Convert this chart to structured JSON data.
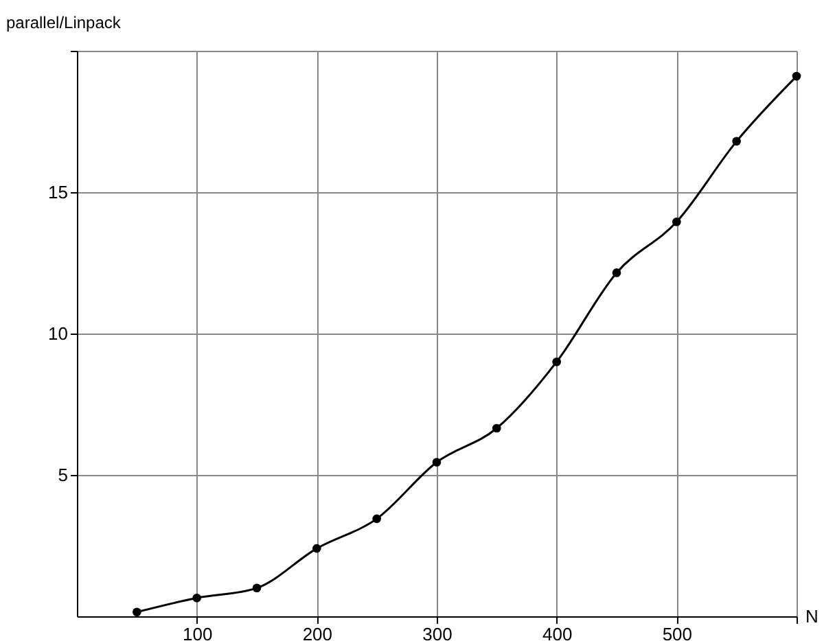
{
  "chart_data": {
    "type": "line",
    "xlabel": "N",
    "ylabel": "parallel/Linpack",
    "x": [
      50,
      100,
      150,
      200,
      250,
      300,
      350,
      400,
      450,
      500,
      550,
      600
    ],
    "values": [
      0.15,
      0.65,
      1.0,
      2.4,
      3.45,
      5.45,
      6.65,
      9.0,
      12.15,
      13.95,
      16.8,
      19.1
    ],
    "color": "#000000",
    "xlim": [
      0,
      600
    ],
    "ylim": [
      0,
      20
    ],
    "xticks": [
      100,
      200,
      300,
      400,
      500,
      {
        "value": 600,
        "label": null
      }
    ],
    "yticks": [
      5,
      10,
      15,
      {
        "value": 20,
        "label": null
      }
    ],
    "grid": true,
    "marker": "circle",
    "line_style": "solid"
  }
}
